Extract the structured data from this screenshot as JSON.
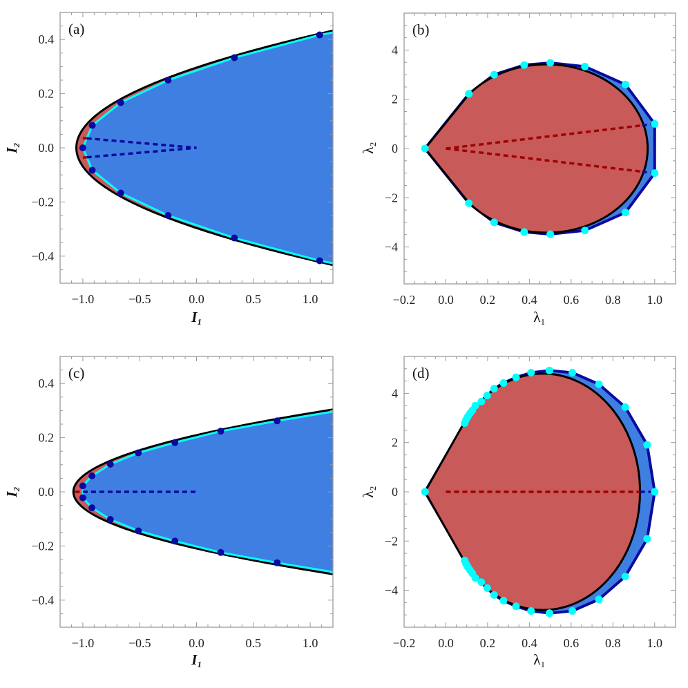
{
  "colors": {
    "region_blue": "#3f7fe2",
    "region_red": "#c85a5a",
    "boundary": "#000000",
    "cyan": "#00ffff",
    "dark_blue": "#0a0aa0",
    "dashed_red": "#a00000",
    "frame": "#9a9a9a"
  },
  "chart_data": [
    {
      "panel": "(a)",
      "type": "area",
      "xlabel": "I₁",
      "ylabel": "I₂",
      "xlim": [
        -1.2,
        1.2
      ],
      "ylim": [
        -0.5,
        0.5
      ],
      "xticks": [
        -1.0,
        -0.5,
        0.0,
        0.5,
        1.0
      ],
      "xtick_labels": [
        "−1.0",
        "−0.5",
        "0.0",
        "0.5",
        "1.0"
      ],
      "yticks": [
        -0.4,
        -0.2,
        0.0,
        0.2,
        0.4
      ],
      "ytick_labels": [
        "−0.4",
        "−0.2",
        "0.0",
        "0.2",
        "0.4"
      ],
      "xminor": 0.1,
      "yminor": 0.05,
      "boundary": {
        "shape": "parabola",
        "vertex": -1.057,
        "curvature": 12.04
      },
      "points": [
        [
          1.083,
          0.417
        ],
        [
          0.333,
          0.333
        ],
        [
          -0.25,
          0.25
        ],
        [
          -0.667,
          0.167
        ],
        [
          -0.917,
          0.083
        ],
        [
          -1.0,
          0.0
        ],
        [
          -0.917,
          -0.083
        ],
        [
          -0.667,
          -0.167
        ],
        [
          -0.25,
          -0.25
        ],
        [
          0.333,
          -0.333
        ],
        [
          1.083,
          -0.417
        ]
      ],
      "dashed": [
        {
          "color": "dashed_red",
          "from": [
            -1.0,
            0.036
          ],
          "to": [
            -0.965,
            0.035
          ]
        },
        {
          "color": "dark_blue",
          "from": [
            -0.965,
            0.035
          ],
          "to": [
            0.0,
            0.0
          ]
        },
        {
          "color": "dashed_red",
          "from": [
            -1.0,
            -0.036
          ],
          "to": [
            -0.965,
            -0.035
          ]
        },
        {
          "color": "dark_blue",
          "from": [
            -0.965,
            -0.035
          ],
          "to": [
            0.0,
            0.0
          ]
        }
      ]
    },
    {
      "panel": "(b)",
      "type": "area",
      "xlabel": "λ₁",
      "ylabel": "λ₂",
      "xlim": [
        -0.2,
        1.1
      ],
      "ylim": [
        -5.5,
        5.5
      ],
      "xticks": [
        -0.2,
        0.0,
        0.2,
        0.4,
        0.6,
        0.8,
        1.0
      ],
      "xtick_labels": [
        "−0.2",
        "0.0",
        "0.2",
        "0.4",
        "0.6",
        "0.8",
        "1.0"
      ],
      "yticks": [
        -4,
        -2,
        0,
        2,
        4
      ],
      "ytick_labels": [
        "−4",
        "−2",
        "0",
        "2",
        "4"
      ],
      "xminor": 0.05,
      "yminor": 0.5,
      "boundary": {
        "shape": "teardrop",
        "cusp": [
          -0.1,
          0
        ],
        "tangent": [
          0.11,
          2.2
        ],
        "center": 0.47,
        "semi_x": 0.485,
        "semi_y": 3.42
      },
      "points": [
        [
          -0.1,
          0
        ],
        [
          0.11,
          2.22
        ],
        [
          0.231,
          3.0
        ],
        [
          0.375,
          3.39
        ],
        [
          0.5,
          3.48
        ],
        [
          0.666,
          3.33
        ],
        [
          0.86,
          2.6
        ],
        [
          1.0,
          1.0
        ],
        [
          1.0,
          -1.0
        ],
        [
          0.86,
          -2.6
        ],
        [
          0.666,
          -3.33
        ],
        [
          0.5,
          -3.48
        ],
        [
          0.375,
          -3.39
        ],
        [
          0.231,
          -3.0
        ],
        [
          0.11,
          -2.22
        ]
      ],
      "dashed": [
        {
          "color": "dashed_red",
          "from": [
            0.0,
            0.0
          ],
          "to": [
            0.94,
            0.94
          ]
        },
        {
          "color": "dark_blue",
          "from": [
            0.94,
            0.94
          ],
          "to": [
            1.0,
            1.0
          ]
        },
        {
          "color": "dashed_red",
          "from": [
            0.0,
            0.0
          ],
          "to": [
            0.94,
            -0.94
          ]
        },
        {
          "color": "dark_blue",
          "from": [
            0.94,
            -0.94
          ],
          "to": [
            1.0,
            -1.0
          ]
        }
      ]
    },
    {
      "panel": "(c)",
      "type": "area",
      "xlabel": "I₁",
      "ylabel": "I₂",
      "xlim": [
        -1.2,
        1.2
      ],
      "ylim": [
        -0.5,
        0.5
      ],
      "xticks": [
        -1.0,
        -0.5,
        0.0,
        0.5,
        1.0
      ],
      "xtick_labels": [
        "−1.0",
        "−0.5",
        "0.0",
        "0.5",
        "1.0"
      ],
      "yticks": [
        -0.4,
        -0.2,
        0.0,
        0.2,
        0.4
      ],
      "ytick_labels": [
        "−0.4",
        "−0.2",
        "0.0",
        "0.2",
        "0.4"
      ],
      "xminor": 0.1,
      "yminor": 0.05,
      "boundary": {
        "shape": "parabola",
        "vertex": -1.083,
        "curvature": 24.7
      },
      "points": [
        [
          0.709,
          0.262
        ],
        [
          0.213,
          0.224
        ],
        [
          -0.19,
          0.182
        ],
        [
          -0.512,
          0.144
        ],
        [
          -0.758,
          0.102
        ],
        [
          -0.92,
          0.059
        ],
        [
          -1.0,
          0.022
        ],
        [
          -1.0,
          -0.022
        ],
        [
          -0.92,
          -0.059
        ],
        [
          -0.758,
          -0.102
        ],
        [
          -0.512,
          -0.144
        ],
        [
          -0.19,
          -0.182
        ],
        [
          0.213,
          -0.224
        ],
        [
          0.709,
          -0.262
        ]
      ],
      "dashed": [
        {
          "color": "dashed_red",
          "from": [
            -1.07,
            0.0
          ],
          "to": [
            -1.0,
            0.0
          ]
        },
        {
          "color": "dark_blue",
          "from": [
            -1.0,
            0.0
          ],
          "to": [
            0.0,
            0.0
          ]
        }
      ]
    },
    {
      "panel": "(d)",
      "type": "area",
      "xlabel": "λ₁",
      "ylabel": "λ₂",
      "xlim": [
        -0.2,
        1.1
      ],
      "ylim": [
        -5.5,
        5.5
      ],
      "xticks": [
        -0.2,
        0.0,
        0.2,
        0.4,
        0.6,
        0.8,
        1.0
      ],
      "xtick_labels": [
        "−0.2",
        "0.0",
        "0.2",
        "0.4",
        "0.6",
        "0.8",
        "1.0"
      ],
      "yticks": [
        -4,
        -2,
        0,
        2,
        4
      ],
      "ytick_labels": [
        "−4",
        "−2",
        "0",
        "2",
        "4"
      ],
      "xminor": 0.05,
      "yminor": 0.5,
      "boundary": {
        "shape": "teardrop",
        "cusp": [
          -0.1,
          0
        ],
        "tangent": [
          0.085,
          2.77
        ],
        "center": 0.465,
        "semi_x": 0.465,
        "semi_y": 4.8
      },
      "points": [
        [
          -0.1,
          0
        ],
        [
          0.09,
          2.79
        ],
        [
          0.097,
          2.93
        ],
        [
          0.105,
          3.05
        ],
        [
          0.116,
          3.19
        ],
        [
          0.127,
          3.31
        ],
        [
          0.141,
          3.5
        ],
        [
          0.17,
          3.67
        ],
        [
          0.198,
          3.91
        ],
        [
          0.231,
          4.19
        ],
        [
          0.276,
          4.42
        ],
        [
          0.336,
          4.65
        ],
        [
          0.408,
          4.84
        ],
        [
          0.496,
          4.93
        ],
        [
          0.606,
          4.84
        ],
        [
          0.733,
          4.37
        ],
        [
          0.859,
          3.44
        ],
        [
          0.964,
          1.91
        ],
        [
          1.0,
          0
        ],
        [
          0.964,
          -1.91
        ],
        [
          0.859,
          -3.44
        ],
        [
          0.733,
          -4.37
        ],
        [
          0.606,
          -4.84
        ],
        [
          0.496,
          -4.93
        ],
        [
          0.408,
          -4.84
        ],
        [
          0.336,
          -4.65
        ],
        [
          0.276,
          -4.42
        ],
        [
          0.231,
          -4.19
        ],
        [
          0.198,
          -3.91
        ],
        [
          0.17,
          -3.67
        ],
        [
          0.141,
          -3.5
        ],
        [
          0.127,
          -3.31
        ],
        [
          0.116,
          -3.19
        ],
        [
          0.105,
          -3.05
        ],
        [
          0.097,
          -2.93
        ],
        [
          0.09,
          -2.79
        ]
      ],
      "dashed": [
        {
          "color": "dashed_red",
          "from": [
            0.0,
            0.0
          ],
          "to": [
            0.93,
            0.0
          ]
        },
        {
          "color": "dark_blue",
          "from": [
            0.93,
            0.0
          ],
          "to": [
            1.0,
            0.0
          ]
        }
      ]
    }
  ]
}
